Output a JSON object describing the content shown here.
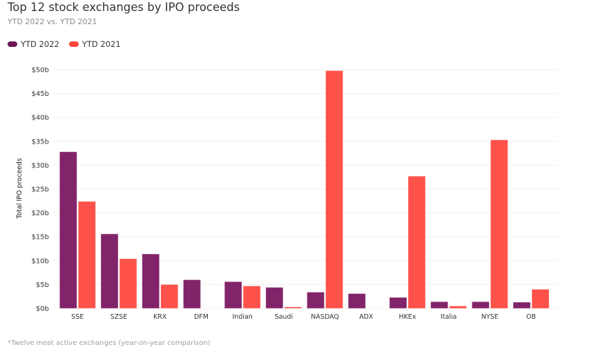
{
  "header": {
    "title": "Top 12 stock exchanges by IPO proceeds",
    "subtitle": "YTD 2022 vs. YTD 2021"
  },
  "legend": [
    {
      "label": "YTD 2022",
      "color": "#82246a"
    },
    {
      "label": "YTD 2021",
      "color": "#ff524a"
    }
  ],
  "footnote": "*Twelve most active exchanges (year-on-year comparison)",
  "chart_data": {
    "type": "bar",
    "title": "Top 12 stock exchanges by IPO proceeds",
    "subtitle": "YTD 2022 vs. YTD 2021",
    "xlabel": "",
    "ylabel": "Total IPO proceeds",
    "ylim": [
      0,
      50
    ],
    "yticks": [
      0,
      5,
      10,
      15,
      20,
      25,
      30,
      35,
      40,
      45,
      50
    ],
    "ytick_labels": [
      "$0b",
      "$5b",
      "$10b",
      "$15b",
      "$20b",
      "$25b",
      "$30b",
      "$35b",
      "$40b",
      "$45b",
      "$50b"
    ],
    "grid": true,
    "legend_position": "top-left",
    "categories": [
      "SSE",
      "SZSE",
      "KRX",
      "DFM",
      "Indian",
      "Saudi",
      "NASDAQ",
      "ADX",
      "HKEx",
      "Italia",
      "NYSE",
      "OB"
    ],
    "series": [
      {
        "name": "YTD 2022",
        "color": "#82246a",
        "values": [
          32.8,
          15.6,
          11.4,
          6.0,
          5.6,
          4.4,
          3.4,
          3.1,
          2.3,
          1.4,
          1.4,
          1.3
        ]
      },
      {
        "name": "YTD 2021",
        "color": "#ff524a",
        "values": [
          22.4,
          10.4,
          5.0,
          0,
          4.7,
          0.3,
          49.8,
          0,
          27.7,
          0.5,
          35.3,
          4.0
        ]
      }
    ]
  }
}
